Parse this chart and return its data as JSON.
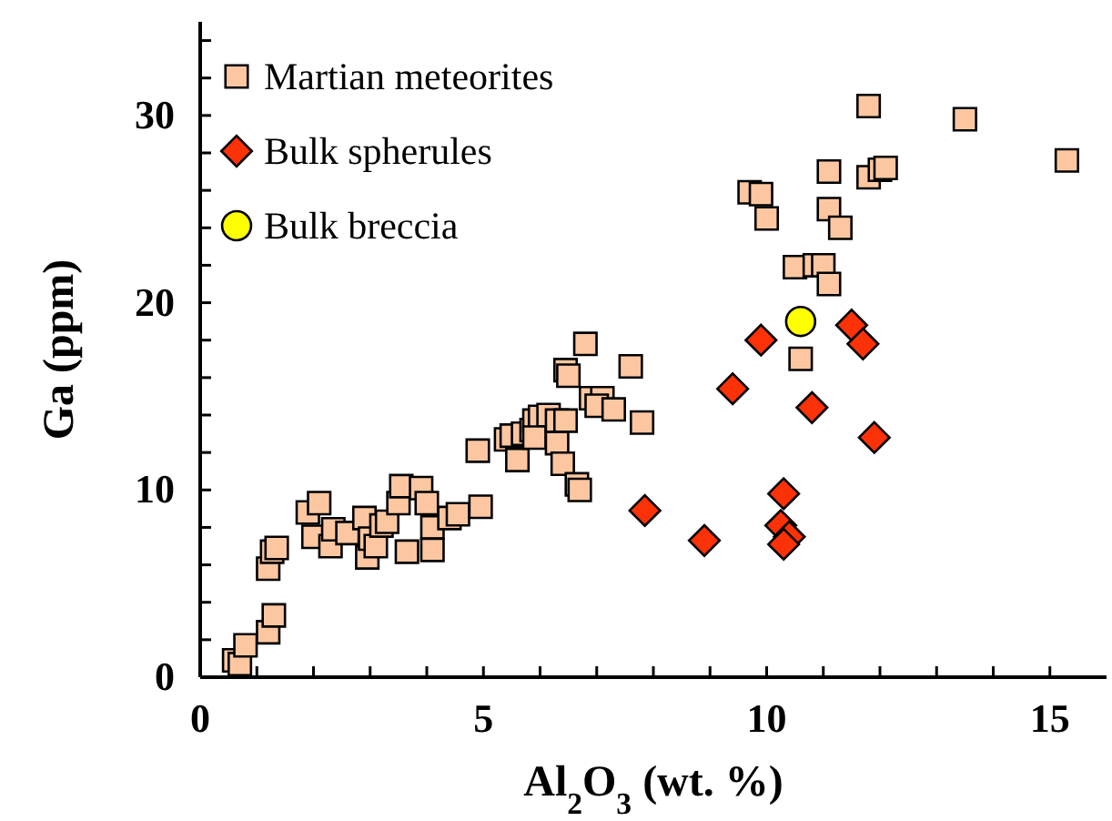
{
  "chart_data": {
    "type": "scatter",
    "xlabel": "Al$_{2}$O$_{3}$ (wt. %)",
    "ylabel": "Ga (ppm)",
    "xlim": [
      0,
      16
    ],
    "ylim": [
      0,
      35
    ],
    "xticks": [
      0,
      {
        "value": 1,
        "label": null
      },
      {
        "value": 2,
        "label": null
      },
      {
        "value": 3,
        "label": null
      },
      {
        "value": 4,
        "label": null
      },
      5,
      {
        "value": 6,
        "label": null
      },
      {
        "value": 7,
        "label": null
      },
      {
        "value": 8,
        "label": null
      },
      {
        "value": 9,
        "label": null
      },
      10,
      {
        "value": 11,
        "label": null
      },
      {
        "value": 12,
        "label": null
      },
      {
        "value": 13,
        "label": null
      },
      {
        "value": 14,
        "label": null
      },
      15
    ],
    "yticks": [
      0,
      {
        "value": 2,
        "label": null
      },
      {
        "value": 4,
        "label": null
      },
      {
        "value": 6,
        "label": null
      },
      {
        "value": 8,
        "label": null
      },
      10,
      {
        "value": 12,
        "label": null
      },
      {
        "value": 14,
        "label": null
      },
      {
        "value": 16,
        "label": null
      },
      {
        "value": 18,
        "label": null
      },
      20,
      {
        "value": 22,
        "label": null
      },
      {
        "value": 24,
        "label": null
      },
      {
        "value": 26,
        "label": null
      },
      {
        "value": 28,
        "label": null
      },
      30,
      {
        "value": 32,
        "label": null
      },
      {
        "value": 34,
        "label": null
      }
    ],
    "grid": false,
    "legend": "top left",
    "series": [
      {
        "name": "Martian meteorites",
        "color": "#fcc7a0",
        "marker": "square",
        "x": [
          0.6,
          0.7,
          0.8,
          1.2,
          1.3,
          1.2,
          1.27,
          1.35,
          1.9,
          2.1,
          2.0,
          2.3,
          2.35,
          2.6,
          2.9,
          2.95,
          3.0,
          3.1,
          3.2,
          3.3,
          3.5,
          3.55,
          3.65,
          3.9,
          4.0,
          4.1,
          4.1,
          4.4,
          4.55,
          4.95,
          4.9,
          5.4,
          5.6,
          5.5,
          5.7,
          5.85,
          5.9,
          6.0,
          6.15,
          5.9,
          6.3,
          6.45,
          6.45,
          6.5,
          6.3,
          6.4,
          6.65,
          6.7,
          6.8,
          6.9,
          7.1,
          7.0,
          7.3,
          7.6,
          7.8,
          9.7,
          9.9,
          10.0,
          10.5,
          10.85,
          11.0,
          11.1,
          11.1,
          11.1,
          11.3,
          11.8,
          11.8,
          12.0,
          12.1,
          13.5,
          15.3,
          10.6
        ],
        "values": [
          0.9,
          0.7,
          1.7,
          2.4,
          3.3,
          5.8,
          6.7,
          6.9,
          8.8,
          9.3,
          7.5,
          7.0,
          7.9,
          7.7,
          8.5,
          6.4,
          7.4,
          7.0,
          8.1,
          8.3,
          9.3,
          10.2,
          6.7,
          10.1,
          9.3,
          8.0,
          6.8,
          8.5,
          8.7,
          9.1,
          12.1,
          12.7,
          11.6,
          12.9,
          13.0,
          13.2,
          13.7,
          13.9,
          14.0,
          12.8,
          13.7,
          13.7,
          16.4,
          16.1,
          12.5,
          11.4,
          10.3,
          10.0,
          17.8,
          14.9,
          14.9,
          14.5,
          14.3,
          16.6,
          13.6,
          25.9,
          25.8,
          24.5,
          21.9,
          22.0,
          22.0,
          21.0,
          27.0,
          25.0,
          24.0,
          30.5,
          26.7,
          27.1,
          27.2,
          29.8,
          27.6,
          17.0
        ]
      },
      {
        "name": "Bulk spherules",
        "color": "#fb3207",
        "marker": "diamond",
        "x": [
          9.9,
          9.4,
          11.5,
          11.7,
          10.8,
          11.9,
          10.3,
          10.25,
          10.4,
          10.3,
          7.85,
          8.9
        ],
        "values": [
          18.0,
          15.4,
          18.8,
          17.8,
          14.4,
          12.8,
          9.8,
          8.1,
          7.5,
          7.1,
          8.9,
          7.3
        ]
      },
      {
        "name": "Bulk breccia",
        "color": "#ffff00",
        "marker": "circle",
        "x": [
          10.6
        ],
        "values": [
          19.0
        ]
      }
    ]
  }
}
